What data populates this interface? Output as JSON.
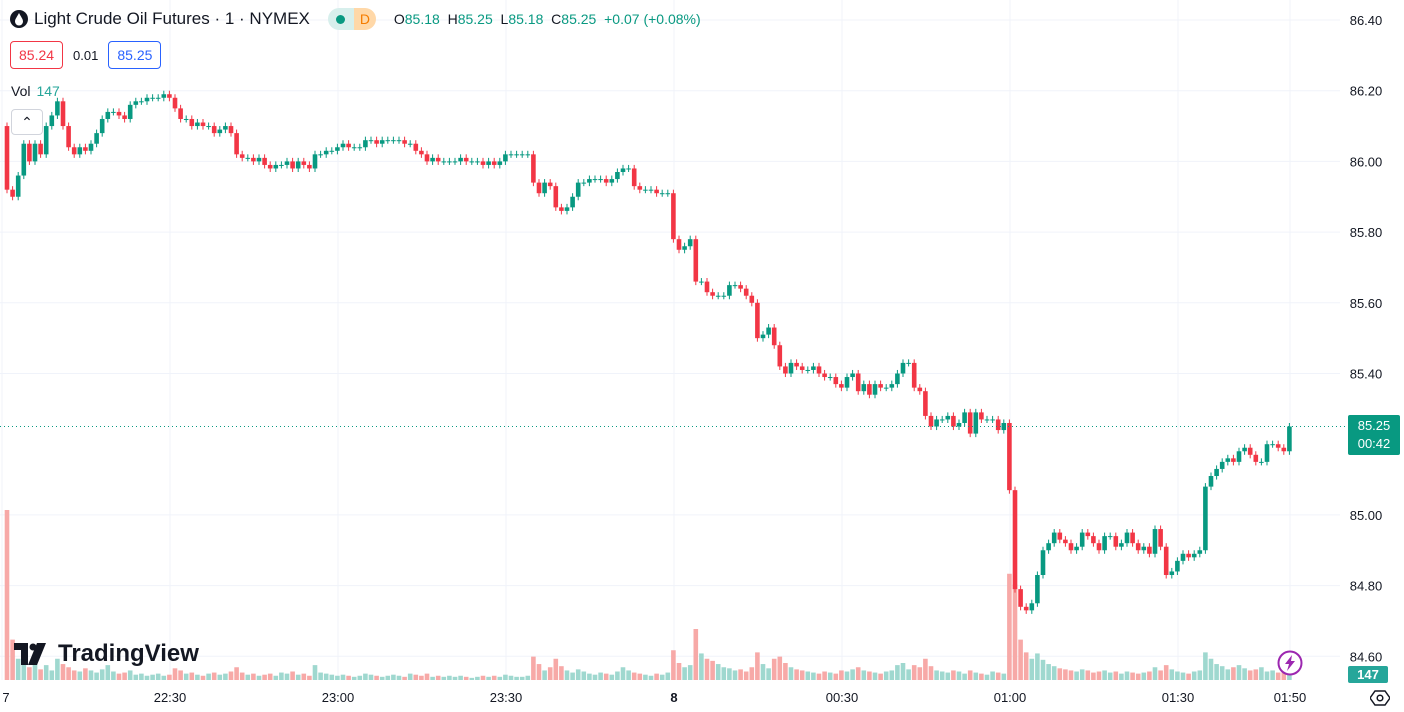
{
  "header": {
    "title": "Light Crude Oil Futures · 1 · NYMEX",
    "session_badge": "D",
    "ohlc": {
      "o_label": "O",
      "o": "85.18",
      "h_label": "H",
      "h": "85.25",
      "l_label": "L",
      "l": "85.18",
      "c_label": "C",
      "c": "85.25",
      "change": "+0.07 (+0.08%)"
    },
    "bid": "85.24",
    "spread": "0.01",
    "ask": "85.25"
  },
  "volume_legend": {
    "label": "Vol",
    "value": "147"
  },
  "brand": "TradingView",
  "colors": {
    "up": "#089981",
    "down": "#F23645",
    "vol_up": "#9fd8cf",
    "vol_down": "#f7a9a7"
  },
  "current_price_tag": {
    "price": "85.25",
    "countdown": "00:42"
  },
  "volume_tag": "147",
  "chart_data": {
    "type": "candlestick",
    "interval_minutes": 1,
    "start_time": "22:00",
    "price_ticks": [
      "86.40",
      "86.20",
      "86.00",
      "85.80",
      "85.60",
      "85.40",
      "85.00",
      "84.80",
      "84.60"
    ],
    "price_range": [
      84.6,
      86.4
    ],
    "time_ticks": [
      "7",
      "22:30",
      "23:00",
      "23:30",
      "8",
      "00:30",
      "01:00",
      "01:30",
      "01:50"
    ],
    "grid": true,
    "first_open": 86.1,
    "close": [
      85.92,
      85.9,
      85.96,
      86.05,
      86.0,
      86.05,
      86.02,
      86.1,
      86.13,
      86.17,
      86.1,
      86.04,
      86.02,
      86.04,
      86.03,
      86.05,
      86.08,
      86.12,
      86.14,
      86.14,
      86.13,
      86.12,
      86.16,
      86.17,
      86.17,
      86.18,
      86.18,
      86.18,
      86.19,
      86.18,
      86.15,
      86.12,
      86.12,
      86.1,
      86.11,
      86.1,
      86.1,
      86.08,
      86.09,
      86.1,
      86.08,
      86.02,
      86.01,
      86.01,
      86.0,
      86.01,
      85.99,
      85.98,
      85.99,
      85.99,
      86.0,
      85.98,
      86.0,
      85.99,
      85.98,
      86.02,
      86.02,
      86.03,
      86.03,
      86.04,
      86.05,
      86.04,
      86.04,
      86.04,
      86.06,
      86.06,
      86.05,
      86.06,
      86.06,
      86.06,
      86.06,
      86.05,
      86.05,
      86.03,
      86.02,
      86.0,
      86.01,
      86.0,
      86.0,
      86.0,
      86.0,
      86.01,
      86.0,
      86.0,
      86.0,
      85.99,
      86.0,
      85.99,
      86.0,
      86.02,
      86.02,
      86.02,
      86.02,
      86.02,
      85.94,
      85.91,
      85.94,
      85.93,
      85.87,
      85.86,
      85.87,
      85.9,
      85.94,
      85.94,
      85.95,
      85.95,
      85.95,
      85.94,
      85.95,
      85.97,
      85.98,
      85.98,
      85.93,
      85.92,
      85.92,
      85.92,
      85.91,
      85.91,
      85.91,
      85.78,
      85.75,
      85.76,
      85.78,
      85.66,
      85.66,
      85.63,
      85.62,
      85.62,
      85.62,
      85.65,
      85.65,
      85.64,
      85.62,
      85.6,
      85.5,
      85.51,
      85.53,
      85.48,
      85.42,
      85.4,
      85.43,
      85.42,
      85.41,
      85.41,
      85.42,
      85.4,
      85.39,
      85.39,
      85.37,
      85.36,
      85.39,
      85.4,
      85.35,
      85.37,
      85.34,
      85.37,
      85.36,
      85.36,
      85.37,
      85.4,
      85.43,
      85.43,
      85.36,
      85.35,
      85.28,
      85.25,
      85.27,
      85.27,
      85.28,
      85.25,
      85.26,
      85.29,
      85.23,
      85.29,
      85.27,
      85.27,
      85.27,
      85.24,
      85.26,
      85.07,
      84.79,
      84.74,
      84.73,
      84.75,
      84.83,
      84.9,
      84.92,
      84.95,
      84.93,
      84.92,
      84.9,
      84.91,
      84.95,
      84.94,
      84.92,
      84.9,
      84.94,
      84.94,
      84.91,
      84.92,
      84.95,
      84.92,
      84.9,
      84.91,
      84.89,
      84.96,
      84.91,
      84.83,
      84.84,
      84.87,
      84.89,
      84.88,
      84.89,
      84.9,
      85.08,
      85.11,
      85.13,
      85.15,
      85.16,
      85.15,
      85.18,
      85.19,
      85.17,
      85.15,
      85.15,
      85.2,
      85.2,
      85.19,
      85.18,
      85.25
    ],
    "volume": [
      1600,
      380,
      200,
      150,
      120,
      160,
      100,
      140,
      90,
      200,
      150,
      120,
      90,
      80,
      110,
      90,
      70,
      100,
      140,
      80,
      60,
      70,
      90,
      50,
      60,
      40,
      50,
      60,
      40,
      50,
      110,
      90,
      60,
      70,
      50,
      40,
      60,
      70,
      50,
      60,
      80,
      120,
      70,
      50,
      60,
      40,
      50,
      60,
      40,
      70,
      60,
      80,
      50,
      60,
      40,
      140,
      70,
      60,
      50,
      40,
      50,
      40,
      30,
      40,
      60,
      50,
      40,
      30,
      40,
      50,
      40,
      30,
      60,
      50,
      40,
      60,
      30,
      40,
      30,
      40,
      30,
      40,
      30,
      20,
      30,
      40,
      30,
      40,
      30,
      50,
      40,
      30,
      30,
      40,
      220,
      150,
      90,
      120,
      200,
      130,
      90,
      70,
      100,
      80,
      60,
      50,
      70,
      60,
      50,
      80,
      120,
      90,
      70,
      60,
      50,
      40,
      60,
      50,
      70,
      280,
      160,
      120,
      140,
      480,
      250,
      200,
      180,
      150,
      120,
      110,
      90,
      100,
      80,
      120,
      260,
      150,
      110,
      200,
      220,
      160,
      120,
      100,
      90,
      80,
      70,
      60,
      80,
      70,
      60,
      90,
      80,
      100,
      120,
      90,
      80,
      70,
      60,
      80,
      90,
      140,
      160,
      100,
      140,
      120,
      200,
      130,
      90,
      80,
      70,
      90,
      80,
      60,
      90,
      70,
      60,
      50,
      80,
      70,
      60,
      1000,
      900,
      380,
      260,
      200,
      250,
      190,
      150,
      130,
      110,
      100,
      90,
      80,
      100,
      90,
      70,
      80,
      90,
      70,
      80,
      60,
      80,
      70,
      60,
      70,
      80,
      120,
      90,
      140,
      100,
      80,
      70,
      60,
      80,
      90,
      260,
      200,
      150,
      130,
      100,
      120,
      140,
      110,
      90,
      100,
      120,
      80,
      90,
      70,
      80,
      147
    ]
  }
}
